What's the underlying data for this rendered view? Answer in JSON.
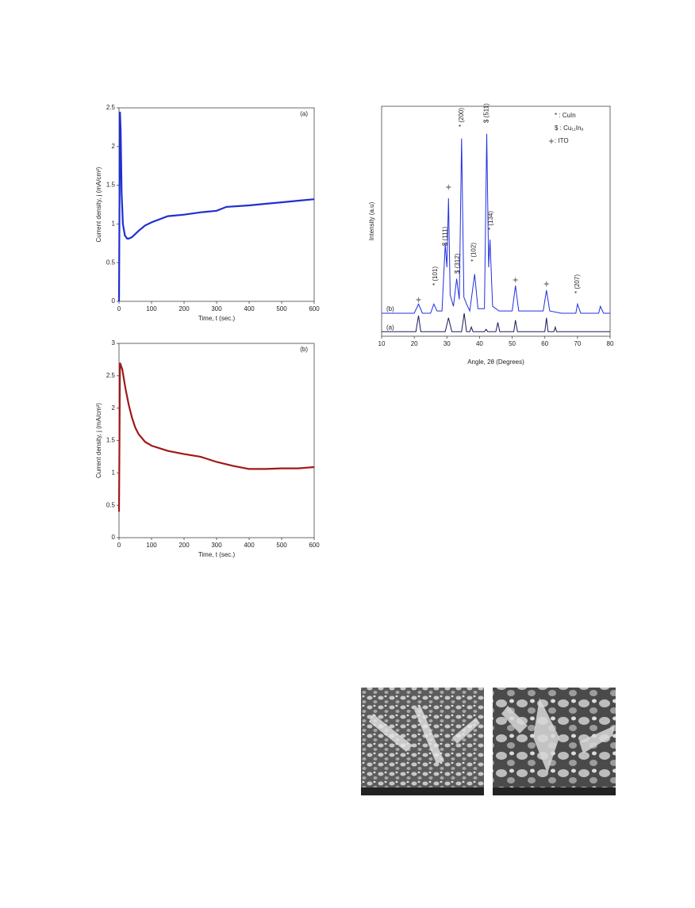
{
  "chart_data": [
    {
      "type": "line",
      "label": "(a)",
      "xlabel": "Time, t (sec.)",
      "ylabel": "Current density, j (mA/cm²)",
      "x": [
        0,
        3,
        5,
        8,
        12,
        18,
        25,
        30,
        40,
        50,
        60,
        80,
        100,
        150,
        200,
        250,
        300,
        330,
        400,
        450,
        500,
        550,
        600
      ],
      "values": [
        0,
        2.45,
        2.2,
        1.4,
        1.0,
        0.85,
        0.81,
        0.81,
        0.83,
        0.87,
        0.91,
        0.98,
        1.02,
        1.1,
        1.12,
        1.15,
        1.17,
        1.22,
        1.24,
        1.26,
        1.28,
        1.3,
        1.32
      ],
      "color": "#1f2fd0",
      "xlim": [
        0,
        600
      ],
      "xticks": [
        0,
        100,
        200,
        300,
        400,
        500,
        600
      ],
      "ylim": [
        0,
        2.5
      ],
      "yticks": [
        0,
        0.5,
        1,
        1.5,
        2,
        2.5
      ]
    },
    {
      "type": "line",
      "label": "(b)",
      "xlabel": "Time, t (sec.)",
      "ylabel": "Current density, j (mA/cm²)",
      "x": [
        0,
        3,
        10,
        20,
        30,
        40,
        50,
        60,
        80,
        100,
        150,
        200,
        250,
        300,
        350,
        400,
        450,
        500,
        550,
        600
      ],
      "values": [
        0.4,
        2.7,
        2.6,
        2.3,
        2.05,
        1.85,
        1.7,
        1.6,
        1.48,
        1.42,
        1.34,
        1.29,
        1.25,
        1.17,
        1.11,
        1.06,
        1.06,
        1.07,
        1.07,
        1.09
      ],
      "color": "#a01818",
      "xlim": [
        0,
        600
      ],
      "xticks": [
        0,
        100,
        200,
        300,
        400,
        500,
        600
      ],
      "ylim": [
        0,
        3
      ],
      "yticks": [
        0,
        0.5,
        1,
        1.5,
        2,
        2.5,
        3
      ]
    },
    {
      "type": "xrd",
      "xlabel": "Angle, 2θ (Degrees)",
      "ylabel": "Intensity (a.u)",
      "xlim": [
        10,
        80
      ],
      "xticks": [
        10,
        20,
        30,
        40,
        50,
        60,
        70,
        80
      ],
      "ylim": [
        0,
        100
      ],
      "legend": [
        "* : CuIn",
        "$ : Cu₁₁In₉",
        ": ITO"
      ],
      "annotations": [
        "* (101)",
        "$ (111)",
        "$ (312)",
        "* (200)",
        "* (102)",
        "$ (511)",
        "* (134)",
        "* (207)"
      ],
      "series": [
        {
          "name": "(a)",
          "color": "#1a1a5a",
          "x": [
            10,
            20.5,
            21.3,
            22,
            29.5,
            30.5,
            31.5,
            34.5,
            35.3,
            36,
            37,
            37.5,
            38,
            41.5,
            42,
            42.5,
            45,
            45.6,
            46.2,
            50.5,
            51,
            51.6,
            60,
            60.5,
            61,
            62.8,
            63.2,
            63.6,
            80
          ],
          "values": [
            2,
            2,
            9,
            2,
            2,
            8,
            2,
            2,
            10,
            2,
            2,
            4,
            2,
            2,
            3,
            2,
            2,
            6,
            2,
            2,
            7,
            2,
            2,
            8,
            2,
            2,
            4,
            2,
            2
          ]
        },
        {
          "name": "(b)",
          "color": "#2030e0",
          "x": [
            10,
            20,
            21.3,
            22.5,
            25,
            26,
            27,
            28.5,
            29.5,
            30,
            30.5,
            31,
            32,
            33,
            33.8,
            34.5,
            35.2,
            36,
            37,
            38.5,
            39.5,
            41.5,
            42.2,
            42.8,
            43.2,
            44,
            46,
            50,
            51,
            52,
            59.5,
            60.5,
            61.5,
            65,
            69.5,
            70,
            71,
            76.5,
            77,
            78,
            80
          ],
          "values": [
            10,
            10,
            14,
            10,
            10,
            14,
            11,
            11,
            40,
            30,
            60,
            18,
            13,
            25,
            16,
            86,
            17,
            14,
            11,
            27,
            12,
            12,
            88,
            30,
            42,
            13,
            11,
            11,
            22,
            11,
            11,
            20,
            11,
            10,
            10,
            14,
            10,
            10,
            13,
            10,
            10
          ]
        }
      ]
    }
  ]
}
